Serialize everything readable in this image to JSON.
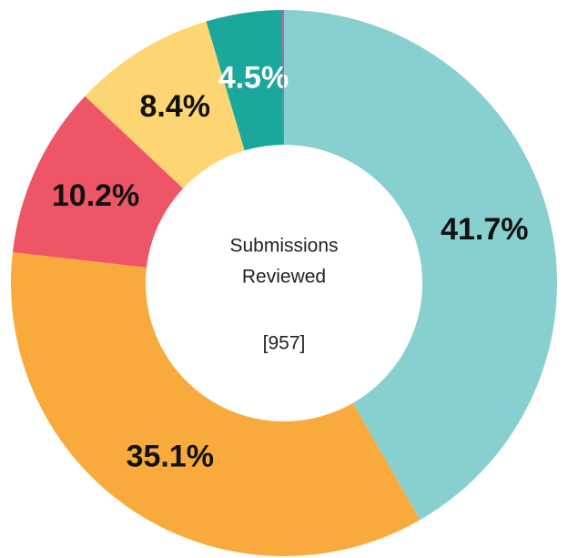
{
  "chart_data": {
    "type": "donut",
    "center_text": [
      "Submissions",
      "Reviewed"
    ],
    "center_total": "[957]",
    "values": [
      41.7,
      35.1,
      10.2,
      8.4,
      4.5,
      0.1
    ],
    "value_labels": [
      "41.7%",
      "35.1%",
      "10.2%",
      "8.4%",
      "4.5%",
      null
    ],
    "colors": [
      "#88cfcf",
      "#f8aa3c",
      "#ee5566",
      "#fdd573",
      "#1aa79c",
      "#d9509a"
    ],
    "label_colors": [
      "#111111",
      "#111111",
      "#111111",
      "#111111",
      "#ffffff",
      null
    ]
  }
}
